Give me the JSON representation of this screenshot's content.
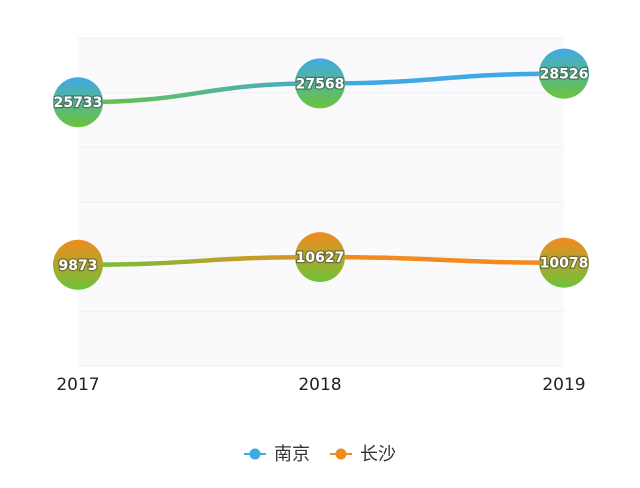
{
  "chart_data": {
    "type": "line",
    "categories": [
      "2017",
      "2018",
      "2019"
    ],
    "series": [
      {
        "name": "南京",
        "values": [
          25733,
          27568,
          28526
        ],
        "color": "#3fa9e6",
        "gradient_start": "#6cc33a"
      },
      {
        "name": "长沙",
        "values": [
          9873,
          10627,
          10078
        ],
        "color": "#f28a1e",
        "gradient_start": "#6cc33a"
      }
    ],
    "title": "",
    "xlabel": "",
    "ylabel": "",
    "ylim": [
      0,
      32000
    ],
    "grid": true,
    "legend": "bottom"
  }
}
